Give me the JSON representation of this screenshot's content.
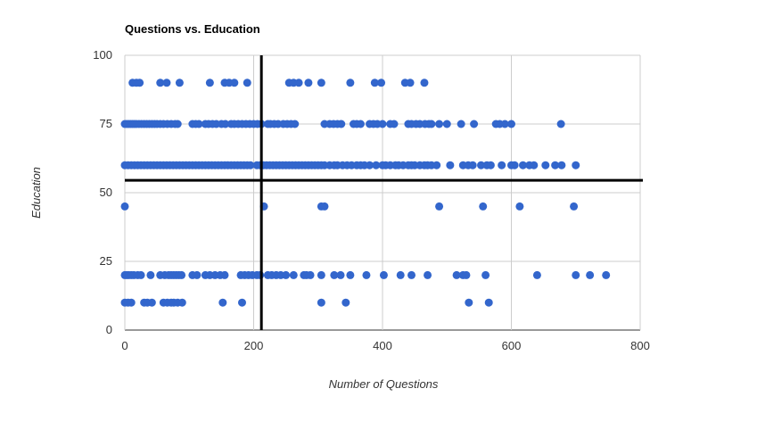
{
  "chart_data": {
    "type": "scatter",
    "title": "Questions vs. Education",
    "xlabel": "Number of Questions",
    "ylabel": "Education",
    "xlim": [
      0,
      800
    ],
    "ylim": [
      0,
      100
    ],
    "x_ticks": [
      0,
      200,
      400,
      600,
      800
    ],
    "y_ticks": [
      0,
      25,
      50,
      75,
      100
    ],
    "grid": true,
    "legend": "none",
    "marker_color": "#3366cc",
    "reference_lines": [
      {
        "orientation": "vertical",
        "value": 212,
        "color": "#000000"
      },
      {
        "orientation": "horizontal",
        "value": 54.5,
        "color": "#000000"
      }
    ],
    "series": [
      {
        "points": [
          [
            12,
            90
          ],
          [
            18,
            90
          ],
          [
            23,
            90
          ],
          [
            55,
            90
          ],
          [
            65,
            90
          ],
          [
            85,
            90
          ],
          [
            132,
            90
          ],
          [
            155,
            90
          ],
          [
            162,
            90
          ],
          [
            170,
            90
          ],
          [
            190,
            90
          ],
          [
            255,
            90
          ],
          [
            262,
            90
          ],
          [
            270,
            90
          ],
          [
            285,
            90
          ],
          [
            305,
            90
          ],
          [
            350,
            90
          ],
          [
            388,
            90
          ],
          [
            398,
            90
          ],
          [
            435,
            90
          ],
          [
            443,
            90
          ],
          [
            465,
            90
          ],
          [
            0,
            75
          ],
          [
            3,
            75
          ],
          [
            6,
            75
          ],
          [
            9,
            75
          ],
          [
            12,
            75
          ],
          [
            15,
            75
          ],
          [
            18,
            75
          ],
          [
            22,
            75
          ],
          [
            26,
            75
          ],
          [
            30,
            75
          ],
          [
            34,
            75
          ],
          [
            38,
            75
          ],
          [
            42,
            75
          ],
          [
            46,
            75
          ],
          [
            50,
            75
          ],
          [
            55,
            75
          ],
          [
            60,
            75
          ],
          [
            66,
            75
          ],
          [
            72,
            75
          ],
          [
            78,
            75
          ],
          [
            82,
            75
          ],
          [
            105,
            75
          ],
          [
            110,
            75
          ],
          [
            115,
            75
          ],
          [
            125,
            75
          ],
          [
            130,
            75
          ],
          [
            136,
            75
          ],
          [
            142,
            75
          ],
          [
            150,
            75
          ],
          [
            156,
            75
          ],
          [
            165,
            75
          ],
          [
            170,
            75
          ],
          [
            176,
            75
          ],
          [
            182,
            75
          ],
          [
            188,
            75
          ],
          [
            194,
            75
          ],
          [
            200,
            75
          ],
          [
            206,
            75
          ],
          [
            212,
            75
          ],
          [
            222,
            75
          ],
          [
            226,
            75
          ],
          [
            232,
            75
          ],
          [
            238,
            75
          ],
          [
            246,
            75
          ],
          [
            252,
            75
          ],
          [
            258,
            75
          ],
          [
            264,
            75
          ],
          [
            310,
            75
          ],
          [
            318,
            75
          ],
          [
            324,
            75
          ],
          [
            330,
            75
          ],
          [
            336,
            75
          ],
          [
            355,
            75
          ],
          [
            360,
            75
          ],
          [
            366,
            75
          ],
          [
            380,
            75
          ],
          [
            386,
            75
          ],
          [
            392,
            75
          ],
          [
            400,
            75
          ],
          [
            412,
            75
          ],
          [
            418,
            75
          ],
          [
            440,
            75
          ],
          [
            445,
            75
          ],
          [
            452,
            75
          ],
          [
            458,
            75
          ],
          [
            466,
            75
          ],
          [
            472,
            75
          ],
          [
            476,
            75
          ],
          [
            488,
            75
          ],
          [
            500,
            75
          ],
          [
            522,
            75
          ],
          [
            542,
            75
          ],
          [
            576,
            75
          ],
          [
            582,
            75
          ],
          [
            590,
            75
          ],
          [
            600,
            75
          ],
          [
            677,
            75
          ],
          [
            0,
            60
          ],
          [
            5,
            60
          ],
          [
            10,
            60
          ],
          [
            15,
            60
          ],
          [
            20,
            60
          ],
          [
            25,
            60
          ],
          [
            30,
            60
          ],
          [
            35,
            60
          ],
          [
            40,
            60
          ],
          [
            45,
            60
          ],
          [
            50,
            60
          ],
          [
            55,
            60
          ],
          [
            60,
            60
          ],
          [
            65,
            60
          ],
          [
            70,
            60
          ],
          [
            75,
            60
          ],
          [
            80,
            60
          ],
          [
            85,
            60
          ],
          [
            90,
            60
          ],
          [
            95,
            60
          ],
          [
            100,
            60
          ],
          [
            105,
            60
          ],
          [
            110,
            60
          ],
          [
            115,
            60
          ],
          [
            120,
            60
          ],
          [
            125,
            60
          ],
          [
            130,
            60
          ],
          [
            135,
            60
          ],
          [
            140,
            60
          ],
          [
            145,
            60
          ],
          [
            150,
            60
          ],
          [
            155,
            60
          ],
          [
            160,
            60
          ],
          [
            165,
            60
          ],
          [
            170,
            60
          ],
          [
            175,
            60
          ],
          [
            180,
            60
          ],
          [
            185,
            60
          ],
          [
            190,
            60
          ],
          [
            195,
            60
          ],
          [
            205,
            60
          ],
          [
            210,
            60
          ],
          [
            215,
            60
          ],
          [
            220,
            60
          ],
          [
            225,
            60
          ],
          [
            230,
            60
          ],
          [
            235,
            60
          ],
          [
            240,
            60
          ],
          [
            245,
            60
          ],
          [
            250,
            60
          ],
          [
            255,
            60
          ],
          [
            260,
            60
          ],
          [
            265,
            60
          ],
          [
            270,
            60
          ],
          [
            275,
            60
          ],
          [
            280,
            60
          ],
          [
            285,
            60
          ],
          [
            290,
            60
          ],
          [
            295,
            60
          ],
          [
            300,
            60
          ],
          [
            305,
            60
          ],
          [
            310,
            60
          ],
          [
            318,
            60
          ],
          [
            325,
            60
          ],
          [
            330,
            60
          ],
          [
            338,
            60
          ],
          [
            345,
            60
          ],
          [
            352,
            60
          ],
          [
            360,
            60
          ],
          [
            366,
            60
          ],
          [
            372,
            60
          ],
          [
            380,
            60
          ],
          [
            390,
            60
          ],
          [
            400,
            60
          ],
          [
            405,
            60
          ],
          [
            412,
            60
          ],
          [
            420,
            60
          ],
          [
            425,
            60
          ],
          [
            432,
            60
          ],
          [
            440,
            60
          ],
          [
            445,
            60
          ],
          [
            450,
            60
          ],
          [
            458,
            60
          ],
          [
            465,
            60
          ],
          [
            470,
            60
          ],
          [
            476,
            60
          ],
          [
            484,
            60
          ],
          [
            505,
            60
          ],
          [
            525,
            60
          ],
          [
            533,
            60
          ],
          [
            540,
            60
          ],
          [
            553,
            60
          ],
          [
            562,
            60
          ],
          [
            568,
            60
          ],
          [
            585,
            60
          ],
          [
            600,
            60
          ],
          [
            605,
            60
          ],
          [
            618,
            60
          ],
          [
            628,
            60
          ],
          [
            635,
            60
          ],
          [
            653,
            60
          ],
          [
            668,
            60
          ],
          [
            678,
            60
          ],
          [
            700,
            60
          ],
          [
            0,
            45
          ],
          [
            216,
            45
          ],
          [
            305,
            45
          ],
          [
            310,
            45
          ],
          [
            488,
            45
          ],
          [
            556,
            45
          ],
          [
            613,
            45
          ],
          [
            697,
            45
          ],
          [
            0,
            20
          ],
          [
            3,
            20
          ],
          [
            6,
            20
          ],
          [
            10,
            20
          ],
          [
            14,
            20
          ],
          [
            20,
            20
          ],
          [
            25,
            20
          ],
          [
            40,
            20
          ],
          [
            55,
            20
          ],
          [
            62,
            20
          ],
          [
            68,
            20
          ],
          [
            72,
            20
          ],
          [
            76,
            20
          ],
          [
            80,
            20
          ],
          [
            84,
            20
          ],
          [
            88,
            20
          ],
          [
            105,
            20
          ],
          [
            112,
            20
          ],
          [
            125,
            20
          ],
          [
            132,
            20
          ],
          [
            140,
            20
          ],
          [
            148,
            20
          ],
          [
            155,
            20
          ],
          [
            180,
            20
          ],
          [
            186,
            20
          ],
          [
            192,
            20
          ],
          [
            198,
            20
          ],
          [
            205,
            20
          ],
          [
            210,
            20
          ],
          [
            222,
            20
          ],
          [
            228,
            20
          ],
          [
            235,
            20
          ],
          [
            242,
            20
          ],
          [
            250,
            20
          ],
          [
            262,
            20
          ],
          [
            278,
            20
          ],
          [
            282,
            20
          ],
          [
            288,
            20
          ],
          [
            305,
            20
          ],
          [
            325,
            20
          ],
          [
            335,
            20
          ],
          [
            350,
            20
          ],
          [
            375,
            20
          ],
          [
            402,
            20
          ],
          [
            428,
            20
          ],
          [
            445,
            20
          ],
          [
            470,
            20
          ],
          [
            515,
            20
          ],
          [
            525,
            20
          ],
          [
            530,
            20
          ],
          [
            560,
            20
          ],
          [
            640,
            20
          ],
          [
            700,
            20
          ],
          [
            722,
            20
          ],
          [
            747,
            20
          ],
          [
            0,
            10
          ],
          [
            5,
            10
          ],
          [
            10,
            10
          ],
          [
            30,
            10
          ],
          [
            35,
            10
          ],
          [
            42,
            10
          ],
          [
            60,
            10
          ],
          [
            66,
            10
          ],
          [
            72,
            10
          ],
          [
            76,
            10
          ],
          [
            82,
            10
          ],
          [
            89,
            10
          ],
          [
            152,
            10
          ],
          [
            182,
            10
          ],
          [
            305,
            10
          ],
          [
            343,
            10
          ],
          [
            534,
            10
          ],
          [
            565,
            10
          ]
        ]
      }
    ]
  }
}
